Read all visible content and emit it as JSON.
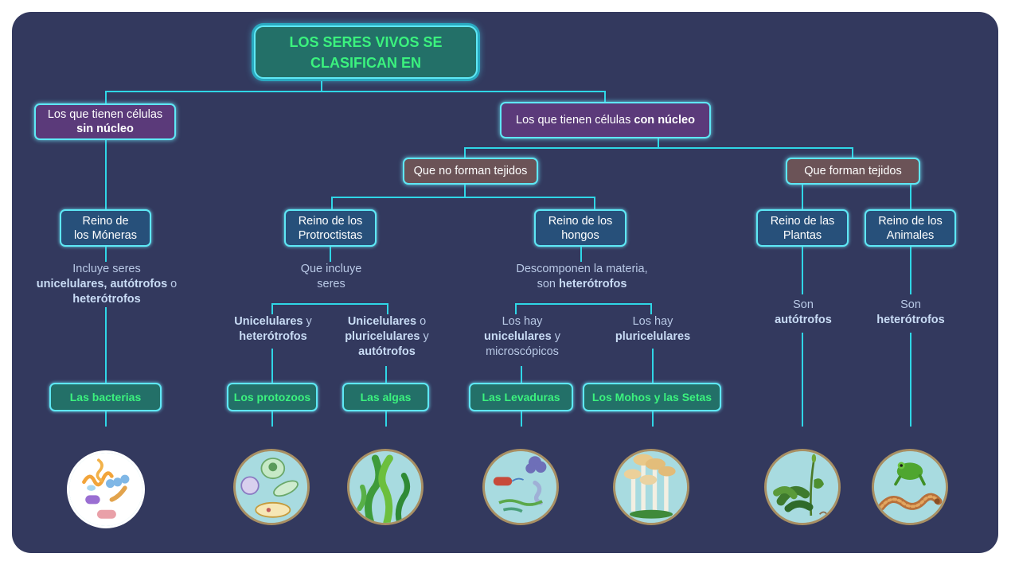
{
  "title": "LOS SERES VIVOS SE CLASIFICAN EN",
  "branches": {
    "sin_nucleo": {
      "text": "Los que tienen células",
      "bold": "sin núcleo"
    },
    "con_nucleo": {
      "text": "Los que tienen células",
      "bold": "con núcleo"
    }
  },
  "groups": {
    "no_tejidos": "Que no forman tejidos",
    "tejidos": "Que forman tejidos"
  },
  "kingdoms": {
    "moneras": {
      "line1": "Reino de",
      "line2": "los Móneras"
    },
    "protoctistas": {
      "line1": "Reino de los",
      "line2": "Protroctistas"
    },
    "hongos": {
      "line1": "Reino de los",
      "line2": "hongos"
    },
    "plantas": {
      "line1": "Reino de las",
      "line2": "Plantas"
    },
    "animales": {
      "line1": "Reino de los",
      "line2": "Animales"
    }
  },
  "descriptions": {
    "moneras": {
      "l1": "Incluye seres",
      "b1": "unicelulares, autótrofos",
      "t1": " o",
      "b2": "heterótrofos"
    },
    "protoctistas": {
      "l1": "Que incluye",
      "l2": "seres"
    },
    "protozoos": {
      "b1": "Unicelulares",
      "t1": " y",
      "b2": "heterótrofos"
    },
    "algas": {
      "b1": "Unicelulares",
      "t1": " o",
      "b2": "pluricelulares",
      "t2": " y",
      "b3": "autótrofos"
    },
    "hongos": {
      "l1": "Descomponen la materia,",
      "t1": "son ",
      "b1": "heterótrofos"
    },
    "levaduras": {
      "l1": "Los hay",
      "b1": "unicelulares",
      "t1": " y",
      "l2": "microscópicos"
    },
    "mohos": {
      "l1": "Los hay",
      "b1": "pluricelulares"
    },
    "plantas": {
      "l1": "Son",
      "b1": "autótrofos"
    },
    "animales": {
      "l1": "Son",
      "b1": "heterótrofos"
    }
  },
  "examples": {
    "bacterias": "Las bacterias",
    "protozoos": "Los protozoos",
    "algas": "Las algas",
    "levaduras": "Las Levaduras",
    "mohos": "Los Mohos y las Setas"
  },
  "colors": {
    "background": "#33395e",
    "connector": "#2fd6e6",
    "leaf_text": "#3bf27e",
    "leaf_fill": "#237068",
    "branch_fill": "#5b3a7a",
    "group_fill": "#6b5357",
    "kingdom_fill": "#27507a"
  },
  "illustrations": [
    "bacteria-illustration",
    "protozoa-illustration",
    "algae-illustration",
    "yeast-illustration",
    "mushroom-illustration",
    "plant-illustration",
    "animal-illustration"
  ]
}
